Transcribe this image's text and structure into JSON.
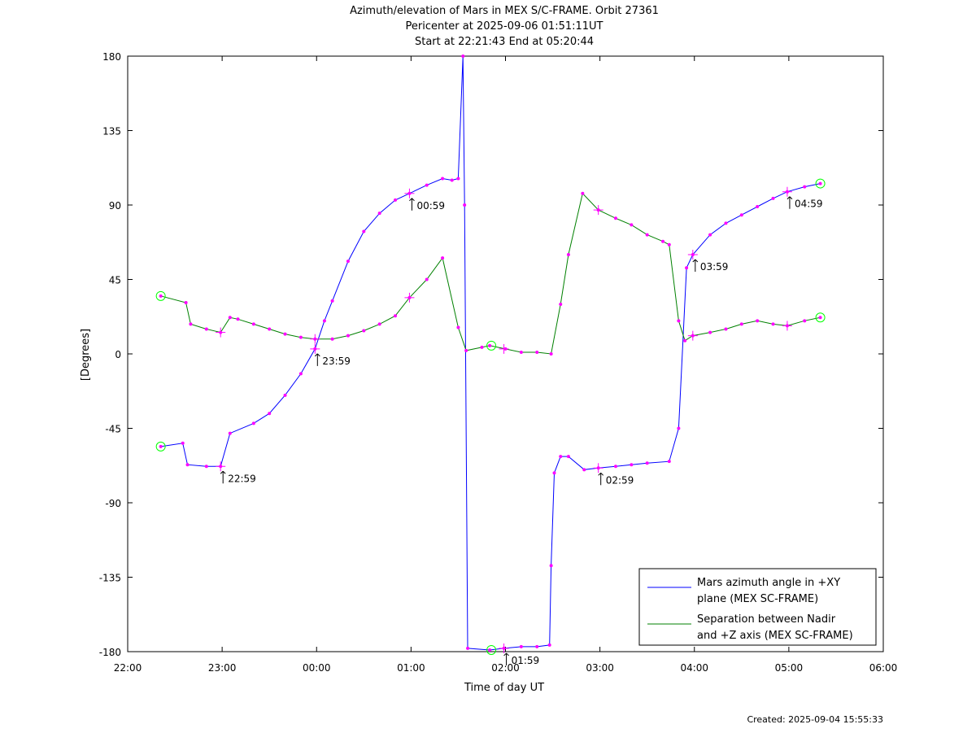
{
  "chart_data": {
    "type": "line",
    "title": [
      "Azimuth/elevation of Mars in MEX S/C-FRAME.  Orbit 27361",
      "Pericenter at 2025-09-06 01:51:11UT",
      "Start at 22:21:43 End at 05:20:44"
    ],
    "xlabel": "Time of day UT",
    "ylabel": "[Degrees]",
    "xlim": [
      "22:00",
      "06:00"
    ],
    "ylim": [
      -180,
      180
    ],
    "x_ticks": [
      "22:00",
      "23:00",
      "00:00",
      "01:00",
      "02:00",
      "03:00",
      "04:00",
      "05:00",
      "06:00"
    ],
    "y_ticks": [
      180,
      135,
      90,
      45,
      0,
      -45,
      -90,
      -135,
      -180
    ],
    "grid": false,
    "legend": "bottom-right",
    "colors": {
      "azimuth": "#0000ff",
      "separation": "#008000",
      "marker": "#ff00ff",
      "endpoint": "#00ff00"
    },
    "series": [
      {
        "name": "Mars azimuth angle in +XY plane (MEX SC-FRAME)",
        "legend_lines": [
          "Mars azimuth angle in +XY",
          "plane (MEX SC-FRAME)"
        ],
        "color": "#0000ff",
        "points": [
          [
            "22:21",
            -56
          ],
          [
            "22:35",
            -54
          ],
          [
            "22:38",
            -67
          ],
          [
            "22:50",
            -68
          ],
          [
            "22:59",
            -68
          ],
          [
            "23:05",
            -48
          ],
          [
            "23:20",
            -42
          ],
          [
            "23:30",
            -36
          ],
          [
            "23:40",
            -25
          ],
          [
            "23:50",
            -12
          ],
          [
            "23:59",
            3
          ],
          [
            "00:05",
            20
          ],
          [
            "00:10",
            32
          ],
          [
            "00:20",
            56
          ],
          [
            "00:30",
            74
          ],
          [
            "00:40",
            85
          ],
          [
            "00:50",
            93
          ],
          [
            "00:59",
            97
          ],
          [
            "01:10",
            102
          ],
          [
            "01:20",
            106
          ],
          [
            "01:26",
            105
          ],
          [
            "01:30",
            106
          ],
          [
            "01:33",
            180
          ],
          [
            "01:34",
            90
          ],
          [
            "01:36",
            -178
          ],
          [
            "01:50",
            -179
          ],
          [
            "01:59",
            -178
          ],
          [
            "02:10",
            -177
          ],
          [
            "02:20",
            -177
          ],
          [
            "02:28",
            -176
          ],
          [
            "02:29",
            -128
          ],
          [
            "02:31",
            -72
          ],
          [
            "02:35",
            -62
          ],
          [
            "02:40",
            -62
          ],
          [
            "02:50",
            -70
          ],
          [
            "02:59",
            -69
          ],
          [
            "03:10",
            -68
          ],
          [
            "03:20",
            -67
          ],
          [
            "03:30",
            -66
          ],
          [
            "03:44",
            -65
          ],
          [
            "03:50",
            -45
          ],
          [
            "03:55",
            52
          ],
          [
            "03:59",
            60
          ],
          [
            "04:10",
            72
          ],
          [
            "04:20",
            79
          ],
          [
            "04:30",
            84
          ],
          [
            "04:40",
            89
          ],
          [
            "04:50",
            94
          ],
          [
            "04:59",
            98
          ],
          [
            "05:10",
            101
          ],
          [
            "05:20",
            103
          ]
        ]
      },
      {
        "name": "Separation between Nadir and +Z axis (MEX SC-FRAME)",
        "legend_lines": [
          "Separation between Nadir",
          "and +Z axis (MEX SC-FRAME)"
        ],
        "color": "#008000",
        "points": [
          [
            "22:21",
            35
          ],
          [
            "22:37",
            31
          ],
          [
            "22:40",
            18
          ],
          [
            "22:50",
            15
          ],
          [
            "22:59",
            13
          ],
          [
            "23:05",
            22
          ],
          [
            "23:10",
            21
          ],
          [
            "23:20",
            18
          ],
          [
            "23:30",
            15
          ],
          [
            "23:40",
            12
          ],
          [
            "23:50",
            10
          ],
          [
            "23:59",
            9
          ],
          [
            "00:10",
            9
          ],
          [
            "00:20",
            11
          ],
          [
            "00:30",
            14
          ],
          [
            "00:40",
            18
          ],
          [
            "00:50",
            23
          ],
          [
            "00:59",
            34
          ],
          [
            "01:10",
            45
          ],
          [
            "01:20",
            58
          ],
          [
            "01:30",
            16
          ],
          [
            "01:35",
            2
          ],
          [
            "01:45",
            4
          ],
          [
            "01:50",
            5
          ],
          [
            "02:00",
            3
          ],
          [
            "02:10",
            1
          ],
          [
            "02:20",
            1
          ],
          [
            "02:29",
            0
          ],
          [
            "02:35",
            30
          ],
          [
            "02:40",
            60
          ],
          [
            "02:49",
            97
          ],
          [
            "02:59",
            87
          ],
          [
            "03:10",
            82
          ],
          [
            "03:20",
            78
          ],
          [
            "03:30",
            72
          ],
          [
            "03:40",
            68
          ],
          [
            "03:44",
            66
          ],
          [
            "03:50",
            20
          ],
          [
            "03:54",
            8
          ],
          [
            "03:59",
            11
          ],
          [
            "04:10",
            13
          ],
          [
            "04:20",
            15
          ],
          [
            "04:30",
            18
          ],
          [
            "04:40",
            20
          ],
          [
            "04:50",
            18
          ],
          [
            "04:59",
            17
          ],
          [
            "05:10",
            20
          ],
          [
            "05:20",
            22
          ]
        ]
      }
    ],
    "hour_marks": [
      {
        "label": "22:59",
        "time": "22:59",
        "value": -68
      },
      {
        "label": "23:59",
        "time": "23:59",
        "value": 3
      },
      {
        "label": "00:59",
        "time": "00:59",
        "value": 97
      },
      {
        "label": "01:59",
        "time": "01:59",
        "value": -178
      },
      {
        "label": "02:59",
        "time": "02:59",
        "value": -69
      },
      {
        "label": "03:59",
        "time": "03:59",
        "value": 60
      },
      {
        "label": "04:59",
        "time": "04:59",
        "value": 98
      }
    ],
    "extra_cross_marks": [
      {
        "time": "22:59",
        "value": 13
      },
      {
        "time": "23:59",
        "value": 9
      },
      {
        "time": "00:59",
        "value": 34
      },
      {
        "time": "01:59",
        "value": 3
      },
      {
        "time": "02:59",
        "value": 87
      },
      {
        "time": "03:59",
        "value": 11
      },
      {
        "time": "04:59",
        "value": 17
      }
    ],
    "endpoint_circles": [
      {
        "time": "22:21",
        "value": -56
      },
      {
        "time": "22:21",
        "value": 35
      },
      {
        "time": "05:20",
        "value": 103
      },
      {
        "time": "05:20",
        "value": 22
      },
      {
        "time": "01:51",
        "value": 5
      },
      {
        "time": "01:51",
        "value": -179
      }
    ],
    "created": "Created: 2025-09-04 15:55:33"
  }
}
